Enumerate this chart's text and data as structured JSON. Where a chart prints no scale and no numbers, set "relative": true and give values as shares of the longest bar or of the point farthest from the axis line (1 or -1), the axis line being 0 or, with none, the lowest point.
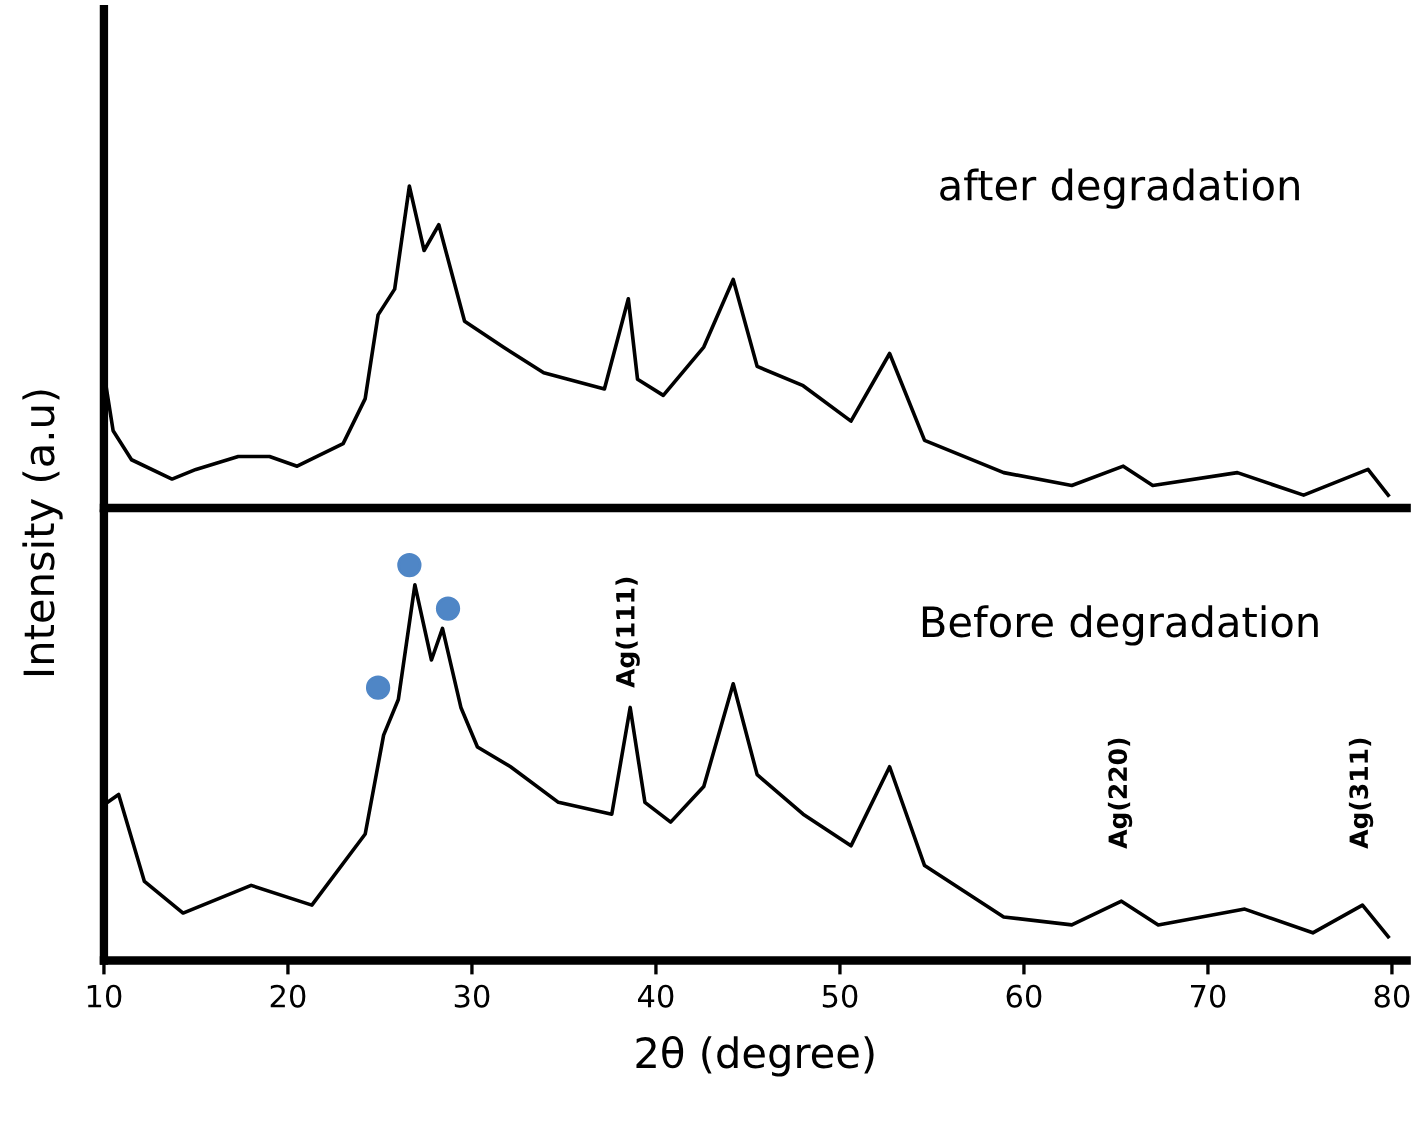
{
  "chart_data": [
    {
      "type": "line",
      "relative": true,
      "ylabel": "Intensity (a.u)",
      "xlim": [
        10,
        80.8
      ],
      "tick_labels": false,
      "grid": false,
      "legend": false,
      "annotations": [
        "after degradation"
      ],
      "series": [
        {
          "color": "#000000",
          "x": [
            10.0,
            10.5,
            11.5,
            13.7,
            15.0,
            17.3,
            19.0,
            20.5,
            23.0,
            24.2,
            24.9,
            25.8,
            26.6,
            27.4,
            28.2,
            28.9,
            29.6,
            31.7,
            33.9,
            37.2,
            38.5,
            39.0,
            40.4,
            42.6,
            44.2,
            45.5,
            48.0,
            50.6,
            52.7,
            54.6,
            58.9,
            62.6,
            65.4,
            67.0,
            71.6,
            75.2,
            78.7,
            79.8
          ],
          "values": [
            0.42,
            0.24,
            0.15,
            0.09,
            0.12,
            0.16,
            0.16,
            0.13,
            0.2,
            0.34,
            0.6,
            0.68,
            1.0,
            0.8,
            0.88,
            0.73,
            0.58,
            0.5,
            0.42,
            0.37,
            0.65,
            0.4,
            0.35,
            0.5,
            0.71,
            0.44,
            0.38,
            0.27,
            0.48,
            0.21,
            0.11,
            0.07,
            0.13,
            0.07,
            0.11,
            0.04,
            0.12,
            0.04
          ]
        }
      ]
    },
    {
      "type": "line",
      "relative": true,
      "xlabel": "2θ (degree)",
      "xlim": [
        10,
        80.8
      ],
      "xticks": [
        10,
        20,
        30,
        40,
        50,
        60,
        70,
        80
      ],
      "tick_labels": "x",
      "grid": false,
      "legend": false,
      "annotations": [
        "Before degradation",
        "Ag(111)",
        "Ag(220)",
        "Ag(311)"
      ],
      "series": [
        {
          "color": "#000000",
          "x": [
            10.2,
            10.8,
            12.2,
            14.3,
            18.0,
            21.3,
            24.2,
            25.2,
            26.0,
            26.9,
            27.8,
            28.4,
            29.4,
            30.3,
            32.1,
            34.7,
            37.6,
            38.6,
            39.4,
            40.8,
            42.6,
            44.2,
            45.5,
            48.0,
            50.6,
            52.7,
            54.6,
            58.9,
            62.6,
            65.3,
            67.3,
            72.0,
            75.7,
            78.4,
            79.8
          ],
          "values": [
            0.4,
            0.42,
            0.2,
            0.12,
            0.19,
            0.14,
            0.32,
            0.57,
            0.66,
            0.95,
            0.76,
            0.84,
            0.64,
            0.54,
            0.49,
            0.4,
            0.37,
            0.64,
            0.4,
            0.35,
            0.44,
            0.7,
            0.47,
            0.37,
            0.29,
            0.49,
            0.24,
            0.11,
            0.09,
            0.15,
            0.09,
            0.13,
            0.07,
            0.14,
            0.06
          ]
        },
        {
          "type": "scatter",
          "marker": "circle",
          "color": "#4f86c6",
          "x": [
            24.9,
            26.6,
            28.7
          ],
          "values": [
            0.69,
            1.0,
            0.89
          ]
        }
      ]
    }
  ]
}
